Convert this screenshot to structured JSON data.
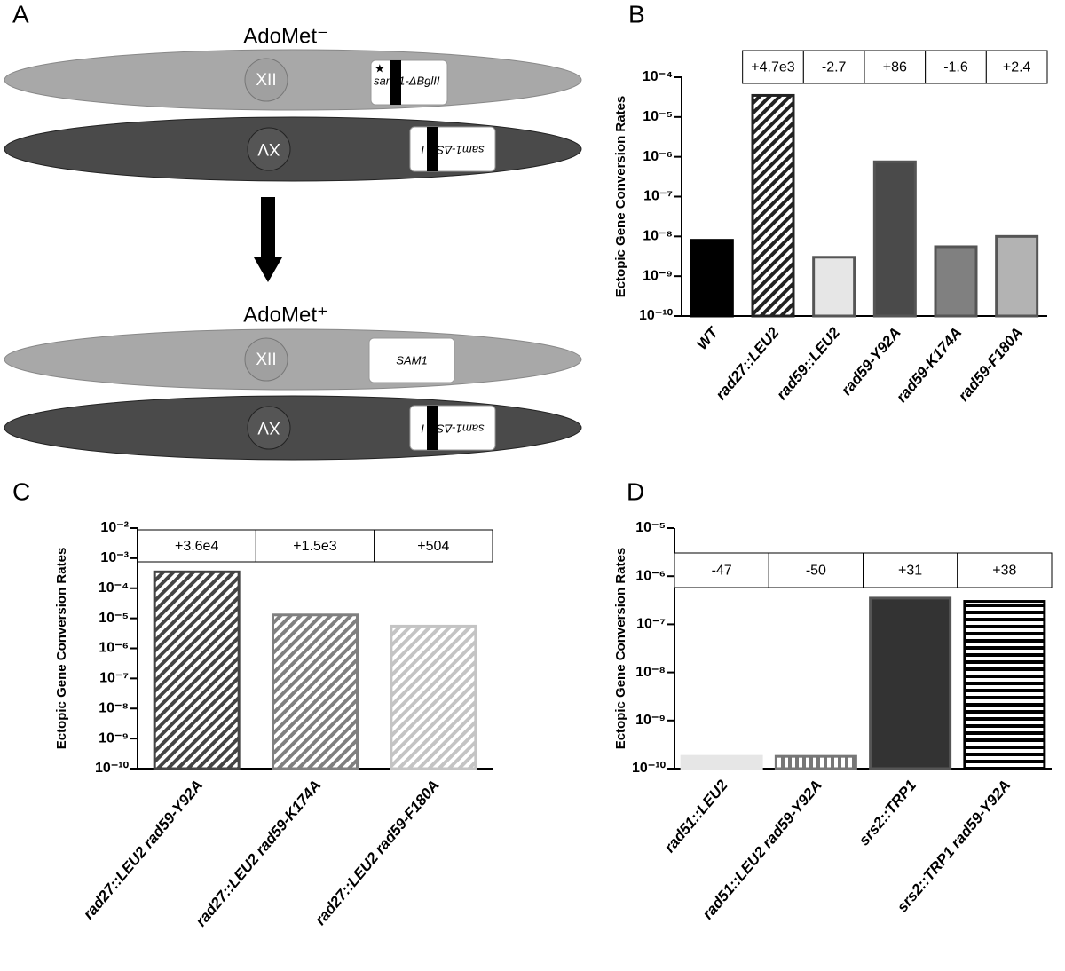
{
  "panel_a": {
    "label": "A",
    "top_title": "AdoMet⁻",
    "bottom_title": "AdoMet⁺",
    "chromosomes": [
      {
        "name": "XII",
        "marker": "sam 1-ΔBglII"
      },
      {
        "name": "XV",
        "marker": "sam1-ΔSal I"
      },
      {
        "name": "XII",
        "marker": "SAM1"
      },
      {
        "name": "XV",
        "marker": "sam1-ΔSal I"
      }
    ]
  },
  "chart_data": [
    {
      "type": "bar",
      "panel": "B",
      "y_label": "Ectopic Gene Conversion Rates",
      "log_scale": true,
      "categories": [
        "WT",
        "rad27::LEU2",
        "rad59::LEU2",
        "rad59-Y92A",
        "rad59-K174A",
        "rad59-F180A"
      ],
      "values": [
        8e-09,
        3.5e-05,
        3e-09,
        7.5e-07,
        5.5e-09,
        1e-08
      ],
      "colors": [
        "#000000",
        "#222222",
        "#e6e6e6",
        "#4a4a4a",
        "#808080",
        "#b3b3b3"
      ],
      "patterns": [
        "solid",
        "diagonal",
        "solid",
        "solid",
        "solid",
        "solid"
      ],
      "annotations": [
        null,
        "+4.7e3",
        "-2.7",
        "+86",
        "-1.6",
        "+2.4"
      ],
      "ylim": [
        1e-10,
        0.0001
      ],
      "yticks": [
        {
          "value": 1e-10,
          "label": "10⁻¹⁰"
        },
        {
          "value": 1e-09,
          "label": "10⁻⁹"
        },
        {
          "value": 1e-08,
          "label": "10⁻⁸"
        },
        {
          "value": 1e-07,
          "label": "10⁻⁷"
        },
        {
          "value": 1e-06,
          "label": "10⁻⁶"
        },
        {
          "value": 1e-05,
          "label": "10⁻⁵"
        },
        {
          "value": 0.0001,
          "label": "10⁻⁴"
        }
      ]
    },
    {
      "type": "bar",
      "panel": "C",
      "y_label": "Ectopic Gene Conversion Rates",
      "log_scale": true,
      "categories": [
        "rad27::LEU2 rad59-Y92A",
        "rad27::LEU2 rad59-K174A",
        "rad27::LEU2 rad59-F180A"
      ],
      "values": [
        0.00035,
        1.3e-05,
        5.5e-06
      ],
      "colors": [
        "#444444",
        "#808080",
        "#c4c4c4"
      ],
      "patterns": [
        "diagonal",
        "diagonal",
        "diagonal"
      ],
      "annotations": [
        "+3.6e4",
        "+1.5e3",
        "+504"
      ],
      "ylim": [
        1e-10,
        0.01
      ],
      "yticks": [
        {
          "value": 1e-10,
          "label": "10⁻¹⁰"
        },
        {
          "value": 1e-09,
          "label": "10⁻⁹"
        },
        {
          "value": 1e-08,
          "label": "10⁻⁸"
        },
        {
          "value": 1e-07,
          "label": "10⁻⁷"
        },
        {
          "value": 1e-06,
          "label": "10⁻⁶"
        },
        {
          "value": 1e-05,
          "label": "10⁻⁵"
        },
        {
          "value": 0.0001,
          "label": "10⁻⁴"
        },
        {
          "value": 0.001,
          "label": "10⁻³"
        },
        {
          "value": 0.01,
          "label": "10⁻²"
        }
      ]
    },
    {
      "type": "bar",
      "panel": "D",
      "y_label": "Ectopic Gene Conversion Rates",
      "log_scale": true,
      "categories": [
        "rad51::LEU2",
        "rad51::LEU2 rad59-Y92A",
        "srs2::TRP1",
        "srs2::TRP1 rad59-Y92A"
      ],
      "values": [
        1.8e-10,
        1.8e-10,
        3.5e-07,
        3e-07
      ],
      "colors": [
        "#e6e6e6",
        "#777777",
        "#333333",
        "#000000"
      ],
      "patterns": [
        "solid",
        "vertical",
        "solid",
        "horizontal"
      ],
      "annotations": [
        "-47",
        "-50",
        "+31",
        "+38"
      ],
      "ylim": [
        1e-10,
        1e-05
      ],
      "yticks": [
        {
          "value": 1e-10,
          "label": "10⁻¹⁰"
        },
        {
          "value": 1e-09,
          "label": "10⁻⁹"
        },
        {
          "value": 1e-08,
          "label": "10⁻⁸"
        },
        {
          "value": 1e-07,
          "label": "10⁻⁷"
        },
        {
          "value": 1e-06,
          "label": "10⁻⁶"
        },
        {
          "value": 1e-05,
          "label": "10⁻⁵"
        }
      ]
    }
  ]
}
